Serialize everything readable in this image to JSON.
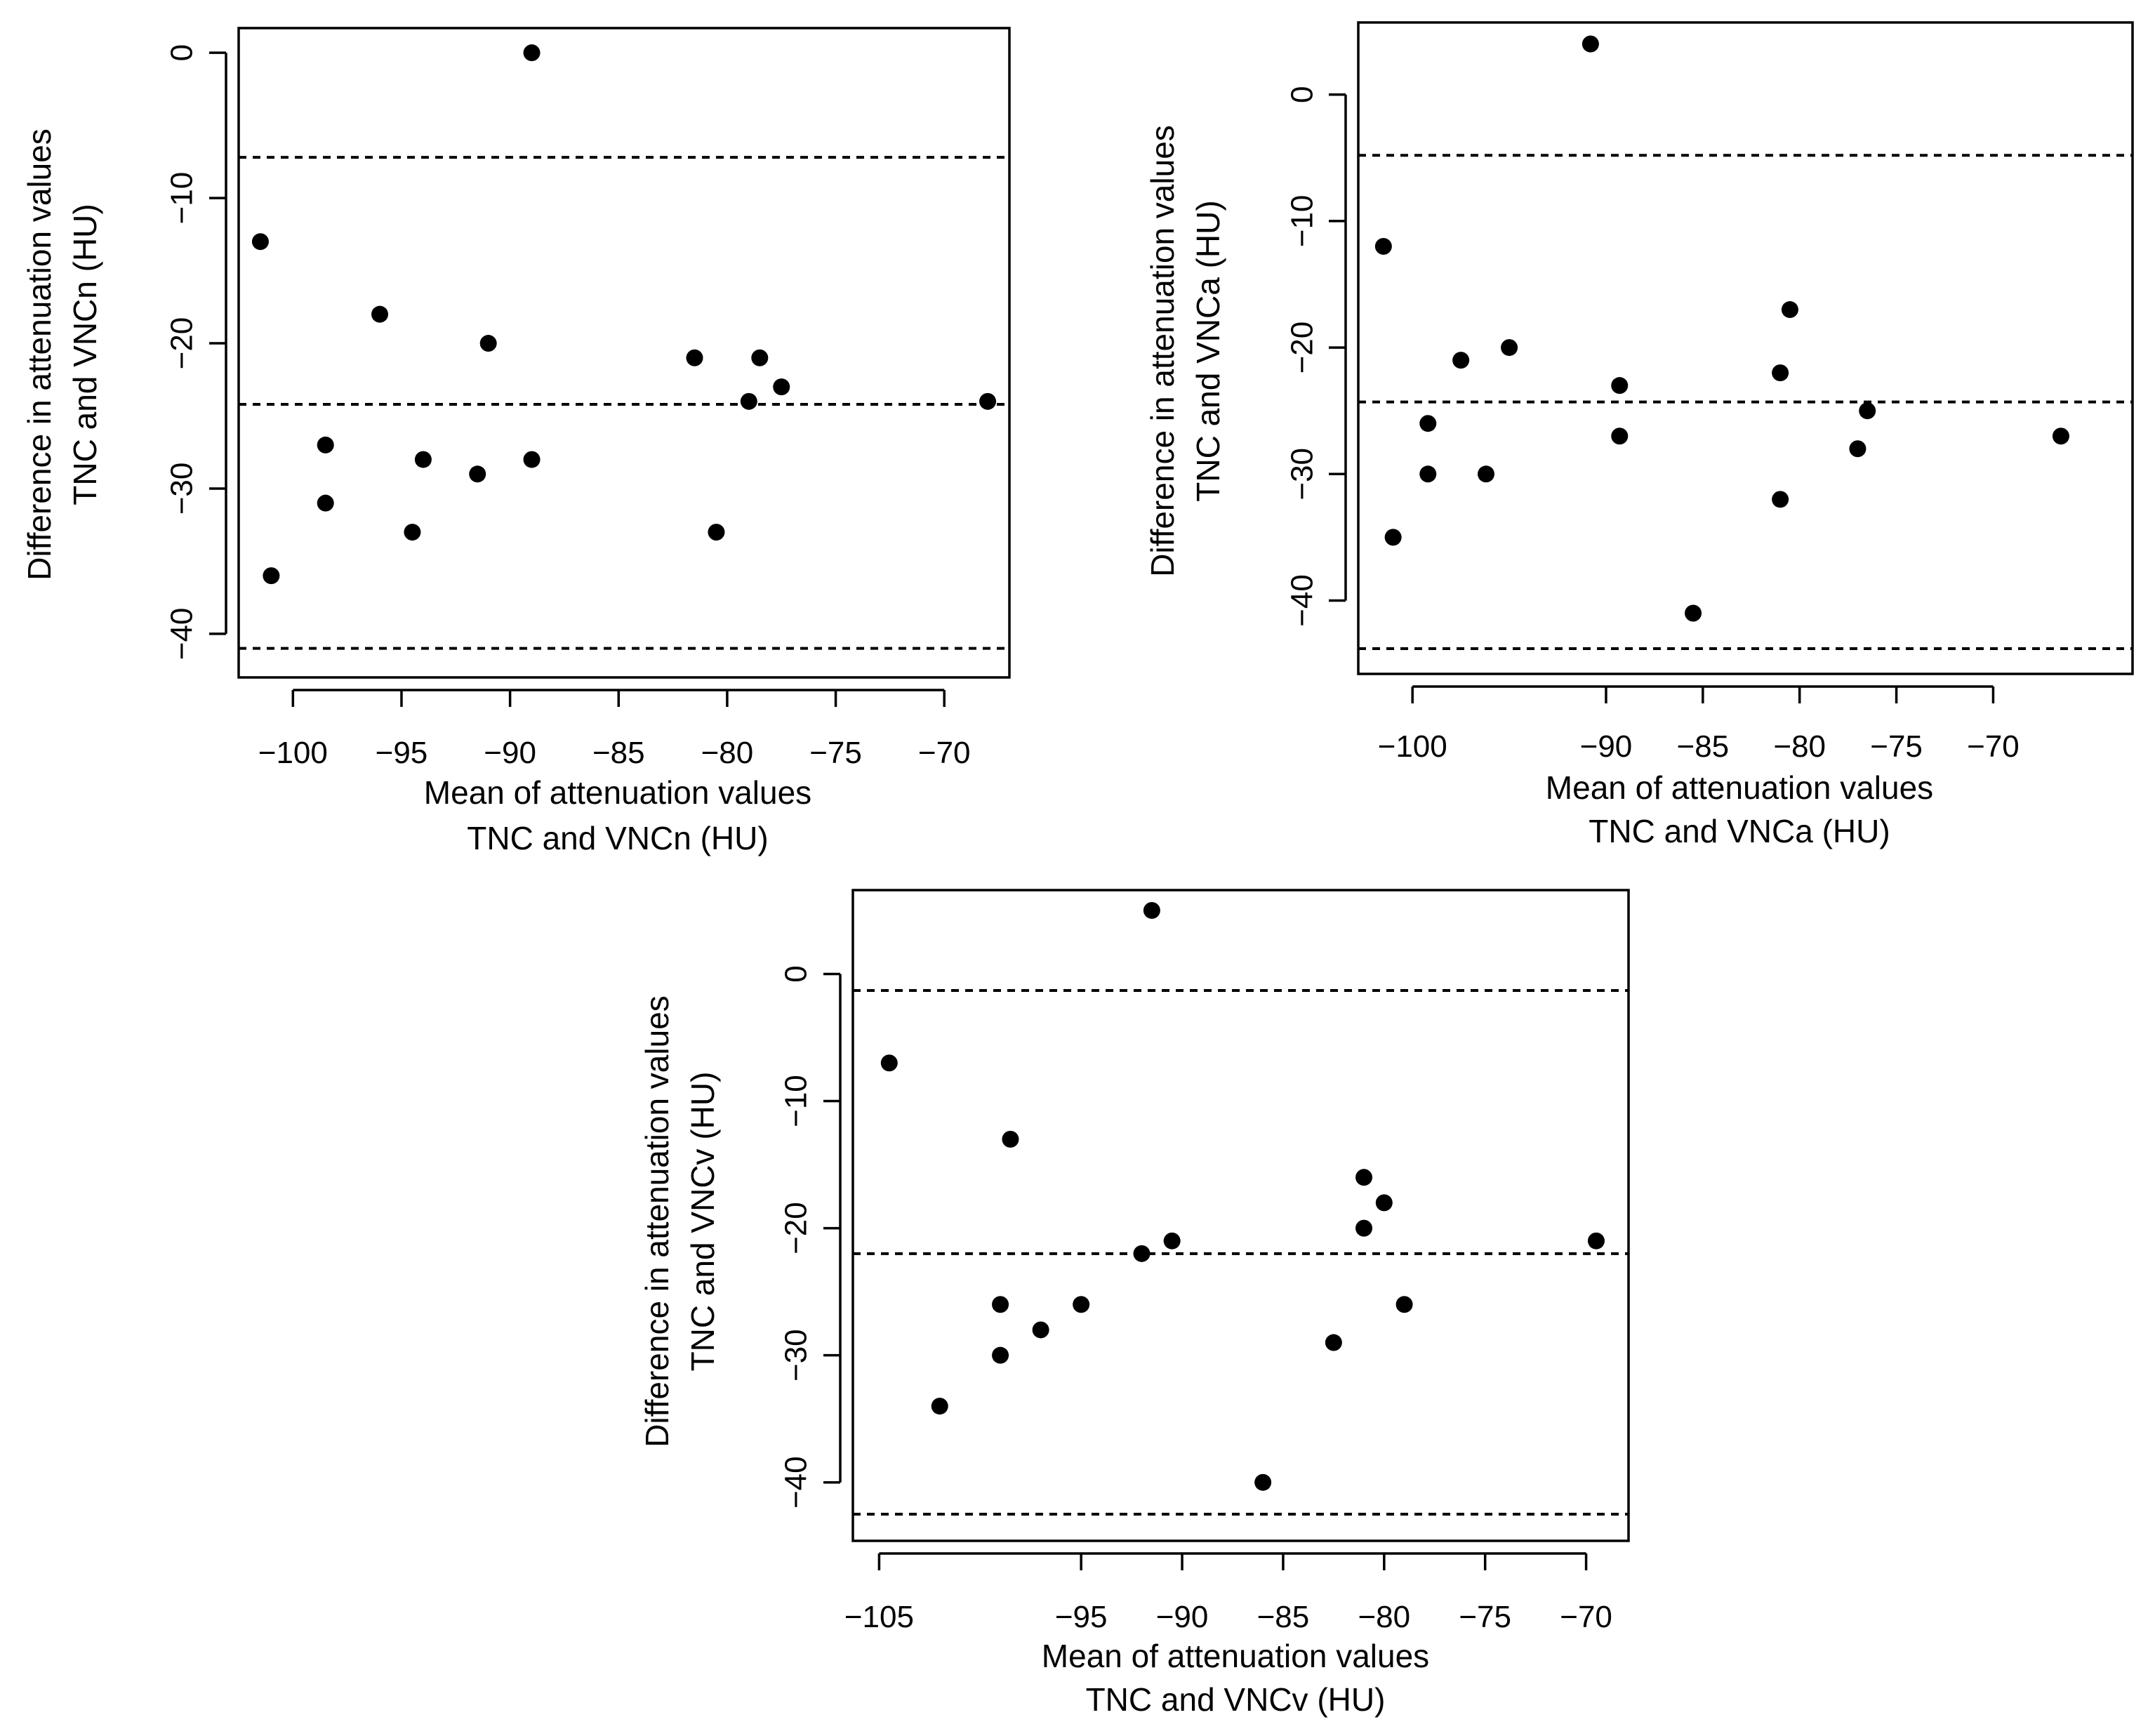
{
  "chart_data": [
    {
      "type": "scatter",
      "name": "tnc-vncn",
      "title": "",
      "xlabel": [
        "Mean of attenuation values",
        "TNC and VNCn (HU)"
      ],
      "ylabel": [
        "Difference in attenuation values",
        "TNC and VNCn (HU)"
      ],
      "xlim": [
        -102.5,
        -67.0
      ],
      "ylim": [
        -43.0,
        1.7
      ],
      "xticks": [
        -100,
        -95,
        -90,
        -85,
        -80,
        -75,
        -70
      ],
      "xtick_labels": [
        "−100",
        "−95",
        "−90",
        "−85",
        "−80",
        "−75",
        "−70"
      ],
      "yticks": [
        0,
        -10,
        -20,
        -30,
        -40
      ],
      "ytick_labels": [
        "0",
        "−10",
        "−20",
        "−30",
        "−40"
      ],
      "reference_lines": [
        -7.2,
        -24.2,
        -41.0
      ],
      "points": [
        {
          "x": -89.0,
          "y": 0
        },
        {
          "x": -101.5,
          "y": -13
        },
        {
          "x": -96.0,
          "y": -18
        },
        {
          "x": -91.0,
          "y": -20
        },
        {
          "x": -81.5,
          "y": -21
        },
        {
          "x": -78.5,
          "y": -21
        },
        {
          "x": -77.5,
          "y": -23
        },
        {
          "x": -79.0,
          "y": -24
        },
        {
          "x": -68.0,
          "y": -24
        },
        {
          "x": -98.5,
          "y": -27
        },
        {
          "x": -94.0,
          "y": -28
        },
        {
          "x": -89.0,
          "y": -28
        },
        {
          "x": -91.5,
          "y": -29
        },
        {
          "x": -98.5,
          "y": -31
        },
        {
          "x": -94.5,
          "y": -33
        },
        {
          "x": -80.5,
          "y": -33
        },
        {
          "x": -101.0,
          "y": -36
        }
      ]
    },
    {
      "type": "scatter",
      "name": "tnc-vnca",
      "title": "",
      "xlabel": [
        "Mean of attenuation values",
        "TNC and VNCa (HU)"
      ],
      "ylabel": [
        "Difference in attenuation values",
        "TNC and VNCa (HU)"
      ],
      "xlim": [
        -102.8,
        -62.8
      ],
      "ylim": [
        -45.8,
        5.7
      ],
      "xticks": [
        -100,
        -90,
        -85,
        -80,
        -75,
        -70
      ],
      "xtick_labels": [
        "−100",
        "−90",
        "−85",
        "−80",
        "−75",
        "−70"
      ],
      "yticks": [
        0,
        -10,
        -20,
        -30,
        -40
      ],
      "ytick_labels": [
        "0",
        "−10",
        "−20",
        "−30",
        "−40"
      ],
      "reference_lines": [
        -4.8,
        -24.3,
        -43.8
      ],
      "points": [
        {
          "x": -90.8,
          "y": 4
        },
        {
          "x": -101.5,
          "y": -12
        },
        {
          "x": -80.5,
          "y": -17
        },
        {
          "x": -95.0,
          "y": -20
        },
        {
          "x": -97.5,
          "y": -21
        },
        {
          "x": -81.0,
          "y": -22
        },
        {
          "x": -89.3,
          "y": -23
        },
        {
          "x": -76.5,
          "y": -25
        },
        {
          "x": -99.2,
          "y": -26
        },
        {
          "x": -89.3,
          "y": -27
        },
        {
          "x": -66.5,
          "y": -27
        },
        {
          "x": -77.0,
          "y": -28
        },
        {
          "x": -99.2,
          "y": -30
        },
        {
          "x": -96.2,
          "y": -30
        },
        {
          "x": -81.0,
          "y": -32
        },
        {
          "x": -101.0,
          "y": -35
        },
        {
          "x": -85.5,
          "y": -41
        }
      ]
    },
    {
      "type": "scatter",
      "name": "tnc-vncv",
      "title": "",
      "xlabel": [
        "Mean of attenuation values",
        "TNC and VNCv (HU)"
      ],
      "ylabel": [
        "Difference in attenuation values",
        "TNC and VNCv (HU)"
      ],
      "xlim": [
        -106.3,
        -67.9
      ],
      "ylim": [
        -44.6,
        6.6
      ],
      "xticks": [
        -105,
        -95,
        -90,
        -85,
        -80,
        -75,
        -70
      ],
      "xtick_labels": [
        "−105",
        "−95",
        "−90",
        "−85",
        "−80",
        "−75",
        "−70"
      ],
      "yticks": [
        0,
        -10,
        -20,
        -30,
        -40
      ],
      "ytick_labels": [
        "0",
        "−10",
        "−20",
        "−30",
        "−40"
      ],
      "reference_lines": [
        -1.3,
        -22.0,
        -42.5
      ],
      "points": [
        {
          "x": -91.5,
          "y": 5
        },
        {
          "x": -104.5,
          "y": -7
        },
        {
          "x": -98.5,
          "y": -13
        },
        {
          "x": -81.0,
          "y": -16
        },
        {
          "x": -80.0,
          "y": -18
        },
        {
          "x": -81.0,
          "y": -20
        },
        {
          "x": -90.5,
          "y": -21
        },
        {
          "x": -69.5,
          "y": -21
        },
        {
          "x": -92.0,
          "y": -22
        },
        {
          "x": -99.0,
          "y": -26
        },
        {
          "x": -95.0,
          "y": -26
        },
        {
          "x": -79.0,
          "y": -26
        },
        {
          "x": -97.0,
          "y": -28
        },
        {
          "x": -82.5,
          "y": -29
        },
        {
          "x": -99.0,
          "y": -30
        },
        {
          "x": -102.0,
          "y": -34
        },
        {
          "x": -86.0,
          "y": -40
        }
      ]
    }
  ]
}
